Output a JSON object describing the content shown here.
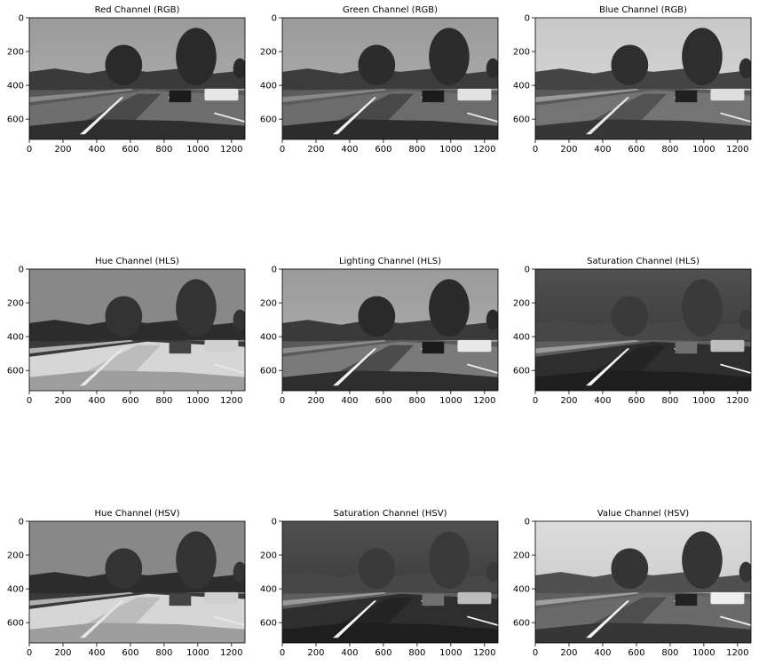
{
  "figure": {
    "background": "#ffffff",
    "panels": [
      {
        "title": "Red Channel (RGB)",
        "variant": "rgb_red"
      },
      {
        "title": "Green Channel (RGB)",
        "variant": "rgb_green"
      },
      {
        "title": "Blue Channel (RGB)",
        "variant": "rgb_blue"
      },
      {
        "title": "Hue Channel (HLS)",
        "variant": "hue"
      },
      {
        "title": "Lighting Channel (HLS)",
        "variant": "light"
      },
      {
        "title": "Saturation Channel (HLS)",
        "variant": "sat"
      },
      {
        "title": "Hue Channel (HSV)",
        "variant": "hue"
      },
      {
        "title": "Saturation Channel (HSV)",
        "variant": "sat"
      },
      {
        "title": "Value Channel (HSV)",
        "variant": "value"
      }
    ]
  },
  "chart_data": {
    "type": "image_grid",
    "rows": 3,
    "cols": 3,
    "xlim": [
      0,
      1280
    ],
    "ylim": [
      720,
      0
    ],
    "xticks": [
      0,
      200,
      400,
      600,
      800,
      1000,
      1200
    ],
    "yticks": [
      0,
      200,
      400,
      600
    ],
    "colormap": "gray"
  }
}
